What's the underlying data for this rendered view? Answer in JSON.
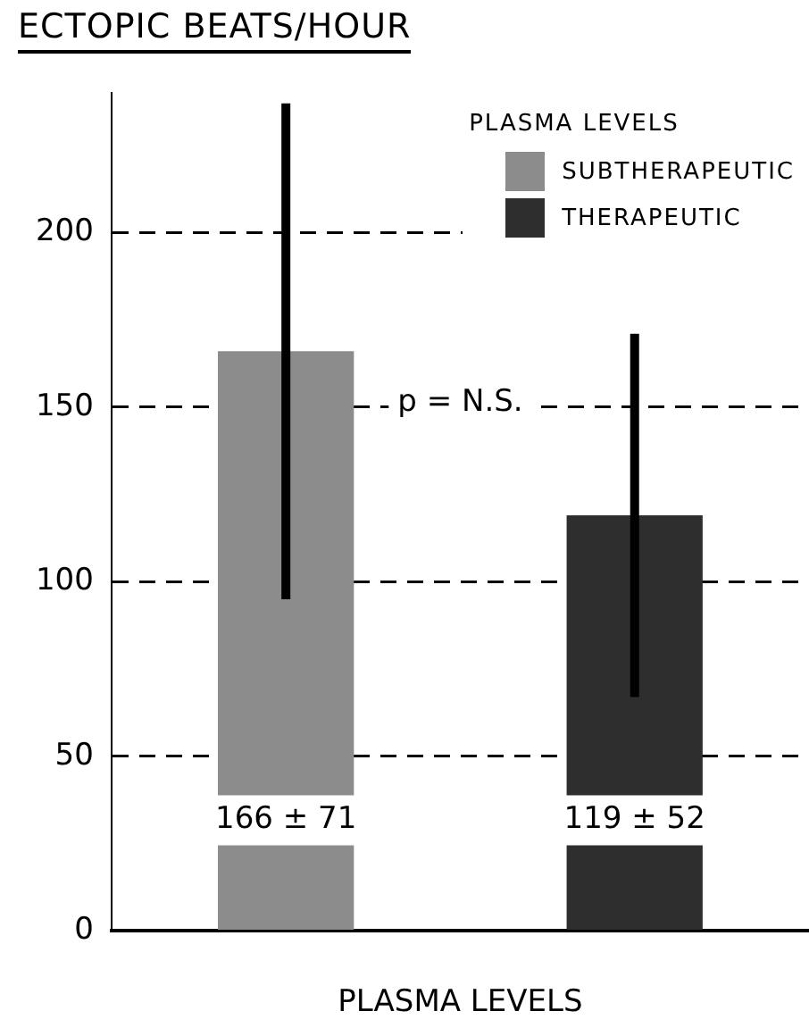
{
  "chart_data": {
    "type": "bar",
    "ylabel": "ECTOPIC BEATS/HOUR",
    "xlabel": "PLASMA LEVELS",
    "legend_title": "PLASMA LEVELS",
    "categories": [
      null,
      null
    ],
    "series": [
      {
        "name": "SUBTHERAPEUTIC",
        "color": "#8c8c8c",
        "values": [
          166,
          null
        ],
        "errors": [
          71,
          null
        ],
        "value_labels": [
          "166 ± 71",
          null
        ]
      },
      {
        "name": "THERAPEUTIC",
        "color": "#2e2e2e",
        "values": [
          null,
          119
        ],
        "errors": [
          null,
          52
        ],
        "value_labels": [
          null,
          "119 ± 52"
        ]
      }
    ],
    "ylim": [
      0,
      240
    ],
    "yticks": [
      0,
      50,
      100,
      150,
      200
    ],
    "grid": "y",
    "legend": "top right",
    "annotations": [
      "p = N.S."
    ]
  }
}
